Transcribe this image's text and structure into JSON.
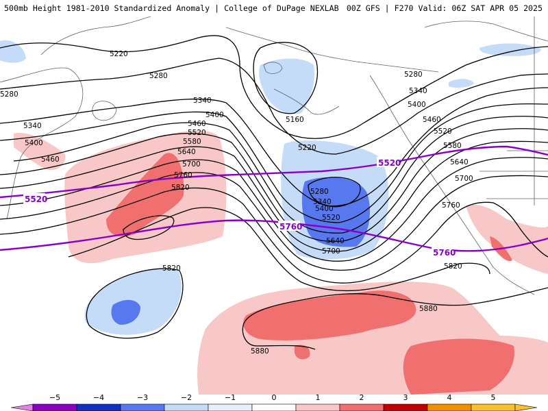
{
  "header": {
    "left_title": "500mb Height 1981-2010 Standardized Anomaly | College of DuPage NEXLAB",
    "right_title": "00Z GFS | F270 Valid: 06Z SAT APR 05 2025"
  },
  "colors": {
    "neg5": "#e080e8",
    "neg4": "#8a00c0",
    "neg3": "#1030c0",
    "neg2": "#5878f0",
    "neg1": "#c4dcf8",
    "zero": "#ffffff",
    "pos1": "#f8c8c8",
    "pos2": "#f07070",
    "pos3": "#c00000",
    "pos4": "#f09000",
    "pos5": "#f8c030",
    "reference_contour": "#8a00c8",
    "height_contour": "#000000"
  },
  "colorbar": {
    "ticks": [
      "−5",
      "−4",
      "−3",
      "−2",
      "−1",
      "0",
      "1",
      "2",
      "3",
      "4",
      "5"
    ]
  },
  "contour_labels": {
    "c5160": "5160",
    "c5220a": "5220",
    "c5220b": "5220",
    "c5280a": "5280",
    "c5280b": "5280",
    "c5280c": "5280",
    "c5280d": "5280",
    "c5340a": "5340",
    "c5340b": "5340",
    "c5340c": "5340",
    "c5340d": "5340",
    "c5400a": "5400",
    "c5400b": "5400",
    "c5400c": "5400",
    "c5400d": "5400",
    "c5460a": "5460",
    "c5460b": "5460",
    "c5460c": "5460",
    "c5520a": "5520",
    "c5520b": "5520",
    "c5520c": "5520",
    "c5580a": "5580",
    "c5580b": "5580",
    "c5640a": "5640",
    "c5640b": "5640",
    "c5640c": "5640",
    "c5700a": "5700",
    "c5700b": "5700",
    "c5700c": "5700",
    "c5760a": "5760",
    "c5760b": "5760",
    "c5820a": "5820",
    "c5820b": "5820",
    "c5820c": "5820",
    "c5880a": "5880",
    "c5880b": "5880"
  },
  "reference_labels": {
    "r5520a": "5520",
    "r5520b": "5520",
    "r5760a": "5760",
    "r5760b": "5760"
  }
}
